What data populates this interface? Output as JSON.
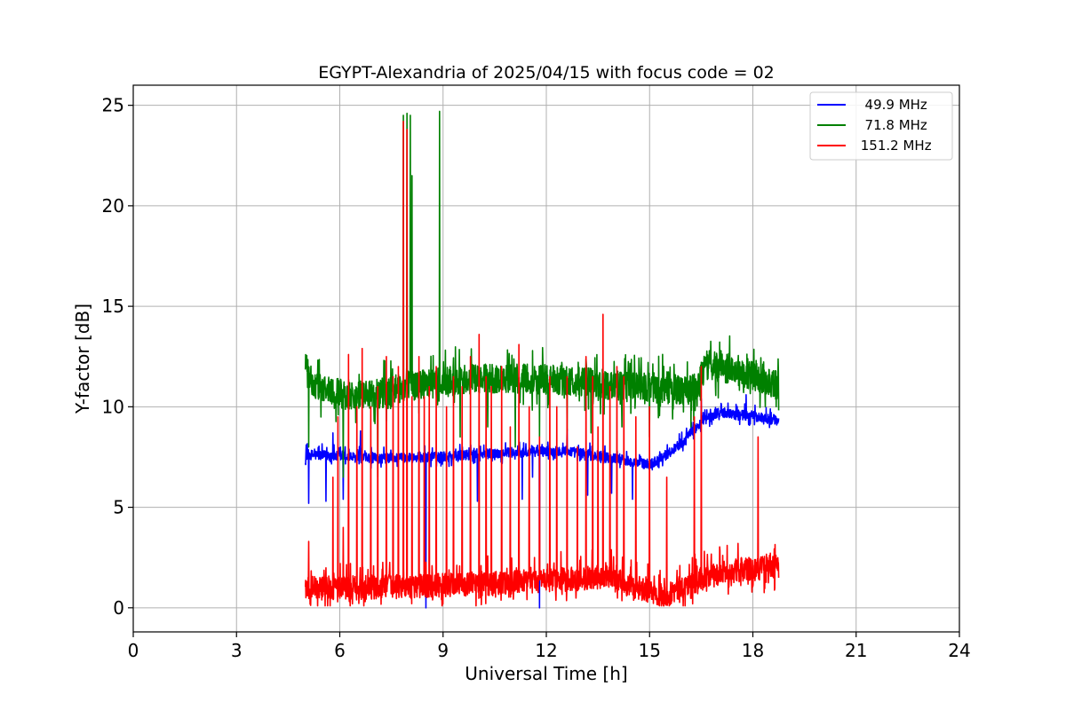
{
  "chart_data": {
    "type": "line",
    "title": "EGYPT-Alexandria of 2025/04/15 with focus code = 02",
    "xlabel": "Universal Time [h]",
    "ylabel": "Y-factor [dB]",
    "xlim": [
      0,
      24
    ],
    "ylim": [
      -1.2,
      26
    ],
    "xticks": [
      0,
      3,
      6,
      9,
      12,
      15,
      18,
      21,
      24
    ],
    "yticks": [
      0,
      5,
      10,
      15,
      20,
      25
    ],
    "grid": true,
    "legend_position": "top-right",
    "series": [
      {
        "name": "  49.9 MHz",
        "color": "#0000ff",
        "x_range": [
          5.0,
          18.75
        ],
        "baseline": [
          [
            5.0,
            7.6
          ],
          [
            7.0,
            7.4
          ],
          [
            9.0,
            7.5
          ],
          [
            11.0,
            7.7
          ],
          [
            12.5,
            7.8
          ],
          [
            14.0,
            7.4
          ],
          [
            15.0,
            7.1
          ],
          [
            15.5,
            7.6
          ],
          [
            16.0,
            8.3
          ],
          [
            16.5,
            9.2
          ],
          [
            17.0,
            9.7
          ],
          [
            18.0,
            9.5
          ],
          [
            18.75,
            9.3
          ]
        ],
        "noise": 0.5,
        "spikes": [
          [
            5.0,
            7.2
          ],
          [
            5.1,
            5.2
          ],
          [
            5.6,
            5.3
          ],
          [
            5.8,
            8.7
          ],
          [
            6.1,
            5.4
          ],
          [
            6.6,
            8.8
          ],
          [
            7.2,
            7.0
          ],
          [
            8.5,
            0.0
          ],
          [
            10.0,
            5.3
          ],
          [
            11.3,
            5.4
          ],
          [
            11.6,
            6.5
          ],
          [
            11.8,
            0.0
          ],
          [
            12.6,
            8.9
          ],
          [
            13.2,
            5.6
          ],
          [
            13.9,
            5.7
          ],
          [
            14.5,
            5.4
          ],
          [
            16.5,
            10.4
          ],
          [
            17.8,
            10.6
          ]
        ]
      },
      {
        "name": "  71.8 MHz",
        "color": "#008000",
        "x_range": [
          5.0,
          18.75
        ],
        "baseline": [
          [
            5.0,
            11.8
          ],
          [
            5.3,
            10.9
          ],
          [
            6.5,
            10.4
          ],
          [
            7.2,
            10.6
          ],
          [
            8.0,
            11.0
          ],
          [
            10.0,
            11.3
          ],
          [
            12.0,
            11.3
          ],
          [
            14.0,
            11.0
          ],
          [
            15.5,
            10.8
          ],
          [
            16.4,
            10.8
          ],
          [
            16.6,
            12.0
          ],
          [
            17.5,
            11.8
          ],
          [
            18.75,
            11.0
          ]
        ],
        "noise": 1.5,
        "spikes": [
          [
            5.1,
            8.0
          ],
          [
            6.1,
            6.5
          ],
          [
            7.1,
            6.5
          ],
          [
            7.5,
            10.0
          ],
          [
            7.85,
            24.5
          ],
          [
            7.95,
            24.6
          ],
          [
            8.05,
            24.5
          ],
          [
            8.1,
            21.5
          ],
          [
            8.9,
            24.7
          ],
          [
            9.5,
            8.5
          ],
          [
            10.3,
            9.0
          ],
          [
            11.1,
            8.0
          ],
          [
            11.8,
            8.5
          ],
          [
            12.6,
            8.8
          ],
          [
            13.3,
            8.7
          ],
          [
            14.2,
            9.0
          ],
          [
            15.0,
            8.5
          ],
          [
            16.2,
            9.0
          ]
        ]
      },
      {
        "name": " 151.2 MHz",
        "color": "#ff0000",
        "x_range": [
          5.0,
          18.75
        ],
        "baseline": [
          [
            5.0,
            0.9
          ],
          [
            8.0,
            1.0
          ],
          [
            11.0,
            1.2
          ],
          [
            13.0,
            1.4
          ],
          [
            14.0,
            1.5
          ],
          [
            14.5,
            0.9
          ],
          [
            15.5,
            0.6
          ],
          [
            16.5,
            1.4
          ],
          [
            17.5,
            1.8
          ],
          [
            18.75,
            2.0
          ]
        ],
        "noise": 1.2,
        "spikes": [
          [
            5.1,
            3.3
          ],
          [
            5.8,
            6.5
          ],
          [
            5.95,
            9.5
          ],
          [
            6.1,
            4.0
          ],
          [
            6.25,
            12.6
          ],
          [
            6.5,
            10.0
          ],
          [
            6.65,
            12.9
          ],
          [
            6.9,
            10.0
          ],
          [
            7.1,
            11.0
          ],
          [
            7.35,
            12.5
          ],
          [
            7.55,
            11.5
          ],
          [
            7.7,
            12.0
          ],
          [
            7.85,
            24.2
          ],
          [
            7.95,
            23.8
          ],
          [
            8.1,
            10.5
          ],
          [
            8.3,
            12.5
          ],
          [
            8.45,
            10.5
          ],
          [
            8.6,
            11.0
          ],
          [
            8.8,
            12.0
          ],
          [
            9.1,
            10.0
          ],
          [
            9.3,
            11.5
          ],
          [
            9.55,
            11.0
          ],
          [
            9.8,
            12.5
          ],
          [
            10.05,
            13.6
          ],
          [
            10.25,
            11.5
          ],
          [
            10.4,
            11.0
          ],
          [
            10.7,
            12.0
          ],
          [
            10.95,
            9.0
          ],
          [
            11.2,
            13.1
          ],
          [
            11.5,
            10.0
          ],
          [
            11.8,
            8.5
          ],
          [
            12.1,
            11.5
          ],
          [
            12.3,
            10.0
          ],
          [
            12.6,
            11.5
          ],
          [
            12.9,
            8.0
          ],
          [
            13.15,
            12.5
          ],
          [
            13.35,
            11.5
          ],
          [
            13.5,
            9.0
          ],
          [
            13.65,
            14.6
          ],
          [
            13.85,
            11.0
          ],
          [
            14.05,
            12.0
          ],
          [
            14.25,
            11.5
          ],
          [
            14.6,
            9.5
          ],
          [
            15.0,
            10.0
          ],
          [
            15.5,
            6.5
          ],
          [
            16.3,
            9.5
          ],
          [
            16.5,
            12.0
          ],
          [
            18.15,
            8.5
          ]
        ]
      }
    ]
  }
}
